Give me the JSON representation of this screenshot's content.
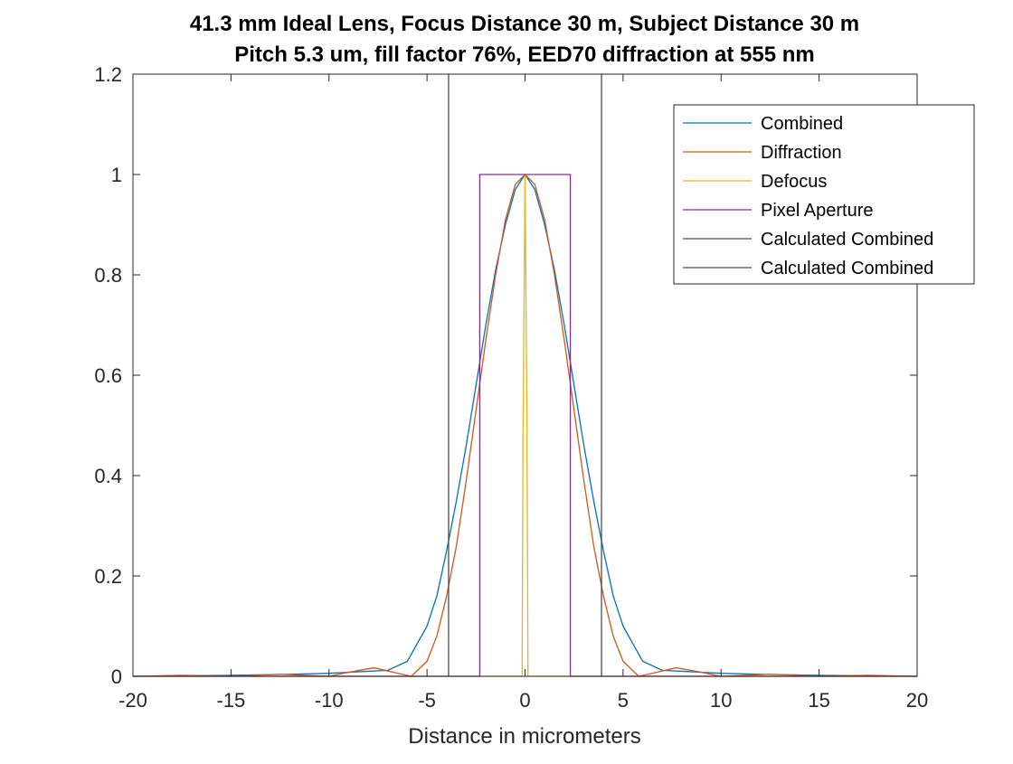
{
  "chart_data": {
    "type": "line",
    "title": "41.3 mm Ideal Lens, Focus Distance 30 m, Subject Distance 30 m",
    "subtitle": "Pitch 5.3 um, fill factor 76%, EED70 diffraction at 555 nm",
    "xlabel": "Distance in micrometers",
    "ylabel": "",
    "xlim": [
      -20,
      20
    ],
    "ylim": [
      0,
      1.2
    ],
    "xticks": [
      -20,
      -15,
      -10,
      -5,
      0,
      5,
      10,
      15,
      20
    ],
    "yticks": [
      0,
      0.2,
      0.4,
      0.6,
      0.8,
      1,
      1.2
    ],
    "xtick_labels": [
      "-20",
      "-15",
      "-10",
      "-5",
      "0",
      "5",
      "10",
      "15",
      "20"
    ],
    "ytick_labels": [
      "0",
      "0.2",
      "0.4",
      "0.6",
      "0.8",
      "1",
      "1.2"
    ],
    "grid": false,
    "legend_position": "top-right",
    "series": [
      {
        "name": "Combined",
        "color": "#0072BD",
        "x": [
          -20,
          -15,
          -12,
          -10,
          -8,
          -7,
          -6,
          -5,
          -4.5,
          -4,
          -3.5,
          -3,
          -2.5,
          -2,
          -1.5,
          -1,
          -0.5,
          0,
          0.5,
          1,
          1.5,
          2,
          2.5,
          3,
          3.5,
          4,
          4.5,
          5,
          6,
          7,
          8,
          10,
          12,
          15,
          20
        ],
        "y": [
          0,
          0.002,
          0.004,
          0.006,
          0.01,
          0.012,
          0.03,
          0.1,
          0.16,
          0.25,
          0.35,
          0.46,
          0.58,
          0.7,
          0.81,
          0.9,
          0.97,
          1,
          0.97,
          0.9,
          0.81,
          0.7,
          0.58,
          0.46,
          0.35,
          0.25,
          0.16,
          0.1,
          0.03,
          0.012,
          0.01,
          0.006,
          0.004,
          0.002,
          0
        ]
      },
      {
        "name": "Diffraction",
        "color": "#D95319",
        "x": [
          -20,
          -17.5,
          -15,
          -12.5,
          -10,
          -9,
          -7.7,
          -6.5,
          -5.8,
          -5,
          -4.5,
          -4,
          -3.5,
          -3,
          -2.5,
          -2,
          -1.5,
          -1,
          -0.5,
          0,
          0.5,
          1,
          1.5,
          2,
          2.5,
          3,
          3.5,
          4,
          4.5,
          5,
          5.8,
          6.5,
          7.7,
          9,
          10,
          12.5,
          15,
          17.5,
          20
        ],
        "y": [
          0,
          0.002,
          0,
          0.004,
          0,
          0.008,
          0.017,
          0.006,
          0,
          0.03,
          0.08,
          0.16,
          0.26,
          0.39,
          0.53,
          0.67,
          0.8,
          0.91,
          0.98,
          1,
          0.98,
          0.91,
          0.8,
          0.67,
          0.53,
          0.39,
          0.26,
          0.16,
          0.08,
          0.03,
          0,
          0.006,
          0.017,
          0.008,
          0,
          0.004,
          0,
          0.002,
          0
        ]
      },
      {
        "name": "Defocus",
        "color": "#EDB120",
        "x": [
          -20,
          -0.15,
          -0.1,
          0,
          0.1,
          0.15,
          20
        ],
        "y": [
          0,
          0,
          0.5,
          1,
          0.5,
          0,
          0
        ]
      },
      {
        "name": "Pixel Aperture",
        "color": "#7E2F8E",
        "x": [
          -20,
          -2.31,
          -2.31,
          2.31,
          2.31,
          20
        ],
        "y": [
          0,
          0,
          1,
          1,
          0,
          0
        ]
      },
      {
        "name": "Calculated Combined",
        "color": "#4D4D4D",
        "x": [
          -3.9,
          -3.9
        ],
        "y": [
          0,
          1.2
        ]
      },
      {
        "name": "Calculated Combined",
        "color": "#4D4D4D",
        "x": [
          3.9,
          3.9
        ],
        "y": [
          0,
          1.2
        ]
      }
    ]
  }
}
